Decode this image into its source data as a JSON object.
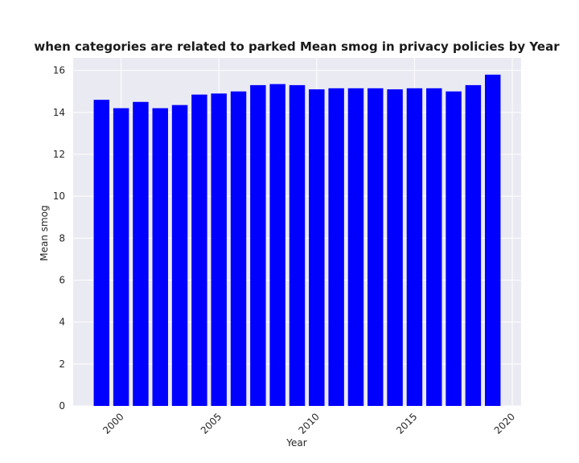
{
  "chart_data": {
    "type": "bar",
    "title": "when categories are related to parked Mean smog in privacy policies by Year",
    "xlabel": "Year",
    "ylabel": "Mean smog",
    "x": [
      1999,
      2000,
      2001,
      2002,
      2003,
      2004,
      2005,
      2006,
      2007,
      2008,
      2009,
      2010,
      2011,
      2012,
      2013,
      2014,
      2015,
      2016,
      2017,
      2018,
      2019
    ],
    "values": [
      14.6,
      14.2,
      14.5,
      14.2,
      14.35,
      14.85,
      14.9,
      15.0,
      15.3,
      15.35,
      15.3,
      15.1,
      15.15,
      15.15,
      15.15,
      15.1,
      15.15,
      15.15,
      15.0,
      15.3,
      15.8
    ],
    "xlim": [
      1997.55,
      2020.45
    ],
    "ylim": [
      0,
      16.6
    ],
    "xticks": [
      2000,
      2005,
      2010,
      2015,
      2020
    ],
    "xtick_labels": [
      "2000",
      "2005",
      "2010",
      "2015",
      "2020"
    ],
    "yticks": [
      0,
      2,
      4,
      6,
      8,
      10,
      12,
      14,
      16
    ],
    "ytick_labels": [
      "0",
      "2",
      "4",
      "6",
      "8",
      "10",
      "12",
      "14",
      "16"
    ],
    "bar_color": "#0000ff",
    "background_color": "#eaeaf2",
    "grid": true,
    "legend": "none"
  }
}
